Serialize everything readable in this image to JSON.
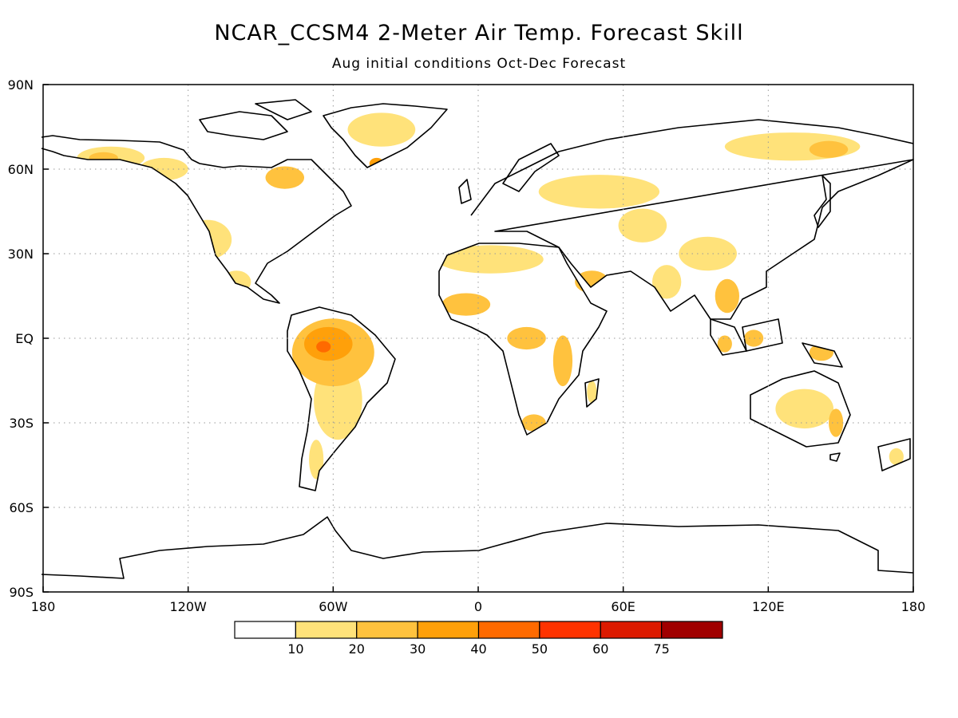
{
  "title": "NCAR_CCSM4 2-Meter Air Temp. Forecast Skill",
  "subtitle": "Aug initial conditions  Oct-Dec Forecast",
  "map": {
    "lon_range": [
      -180,
      180
    ],
    "lat_range": [
      -90,
      90
    ],
    "gridlines": "dotted",
    "lat_ticks": [
      {
        "value": 90,
        "label": "90N"
      },
      {
        "value": 60,
        "label": "60N"
      },
      {
        "value": 30,
        "label": "30N"
      },
      {
        "value": 0,
        "label": "EQ"
      },
      {
        "value": -30,
        "label": "30S"
      },
      {
        "value": -60,
        "label": "60S"
      },
      {
        "value": -90,
        "label": "90S"
      }
    ],
    "lon_ticks": [
      {
        "value": -180,
        "label": "180"
      },
      {
        "value": -120,
        "label": "120W"
      },
      {
        "value": -60,
        "label": "60W"
      },
      {
        "value": 0,
        "label": "0"
      },
      {
        "value": 60,
        "label": "60E"
      },
      {
        "value": 120,
        "label": "120E"
      },
      {
        "value": 180,
        "label": "180"
      }
    ]
  },
  "colorbar": {
    "bins": [
      {
        "color": "#ffffff"
      },
      {
        "color": "#ffe27a"
      },
      {
        "color": "#ffc23e"
      },
      {
        "color": "#ffa00a"
      },
      {
        "color": "#ff6a00"
      },
      {
        "color": "#ff3300"
      },
      {
        "color": "#dc1a00"
      },
      {
        "color": "#a00000"
      }
    ],
    "labels": [
      "10",
      "20",
      "30",
      "40",
      "50",
      "60",
      "75"
    ]
  },
  "skill_regions": [
    {
      "name": "amazon-core",
      "lon": -62,
      "lat": -2,
      "rlon": 10,
      "rlat": 6,
      "level": 3
    },
    {
      "name": "amazon-peak",
      "lon": -64,
      "lat": -3,
      "rlon": 3,
      "rlat": 2,
      "level": 4
    },
    {
      "name": "amazon-wide",
      "lon": -60,
      "lat": -5,
      "rlon": 17,
      "rlat": 12,
      "level": 2
    },
    {
      "name": "south-america-south",
      "lon": -58,
      "lat": -22,
      "rlon": 10,
      "rlat": 14,
      "level": 1
    },
    {
      "name": "patagonia",
      "lon": -67,
      "lat": -43,
      "rlon": 3,
      "rlat": 7,
      "level": 1
    },
    {
      "name": "alaska",
      "lon": -152,
      "lat": 64,
      "rlon": 14,
      "rlat": 4,
      "level": 1
    },
    {
      "name": "alaska-core",
      "lon": -155,
      "lat": 64,
      "rlon": 6,
      "rlat": 2,
      "level": 2
    },
    {
      "name": "canada-northwest",
      "lon": -130,
      "lat": 60,
      "rlon": 10,
      "rlat": 4,
      "level": 1
    },
    {
      "name": "hudson-bay",
      "lon": -80,
      "lat": 57,
      "rlon": 8,
      "rlat": 4,
      "level": 2
    },
    {
      "name": "greenland",
      "lon": -40,
      "lat": 74,
      "rlon": 14,
      "rlat": 6,
      "level": 1
    },
    {
      "name": "greenland-south",
      "lon": -42,
      "lat": 62,
      "rlon": 3,
      "rlat": 2,
      "level": 3
    },
    {
      "name": "usa-west",
      "lon": -112,
      "lat": 35,
      "rlon": 10,
      "rlat": 7,
      "level": 1
    },
    {
      "name": "mexico",
      "lon": -100,
      "lat": 20,
      "rlon": 6,
      "rlat": 4,
      "level": 1
    },
    {
      "name": "sahara",
      "lon": 5,
      "lat": 28,
      "rlon": 22,
      "rlat": 5,
      "level": 1
    },
    {
      "name": "west-africa",
      "lon": -5,
      "lat": 12,
      "rlon": 10,
      "rlat": 4,
      "level": 2
    },
    {
      "name": "central-africa",
      "lon": 20,
      "lat": 0,
      "rlon": 8,
      "rlat": 4,
      "level": 2
    },
    {
      "name": "east-africa",
      "lon": 35,
      "lat": -8,
      "rlon": 4,
      "rlat": 9,
      "level": 2
    },
    {
      "name": "south-africa",
      "lon": 23,
      "lat": -30,
      "rlon": 5,
      "rlat": 3,
      "level": 2
    },
    {
      "name": "madagascar",
      "lon": 47,
      "lat": -19,
      "rlon": 2,
      "rlat": 4,
      "level": 1
    },
    {
      "name": "arabia",
      "lon": 47,
      "lat": 20,
      "rlon": 7,
      "rlat": 4,
      "level": 2
    },
    {
      "name": "russia-west",
      "lon": 50,
      "lat": 52,
      "rlon": 25,
      "rlat": 6,
      "level": 1
    },
    {
      "name": "central-asia",
      "lon": 68,
      "lat": 40,
      "rlon": 10,
      "rlat": 6,
      "level": 1
    },
    {
      "name": "india",
      "lon": 78,
      "lat": 20,
      "rlon": 6,
      "rlat": 6,
      "level": 1
    },
    {
      "name": "china",
      "lon": 95,
      "lat": 30,
      "rlon": 12,
      "rlat": 6,
      "level": 1
    },
    {
      "name": "indochina",
      "lon": 103,
      "lat": 15,
      "rlon": 5,
      "rlat": 6,
      "level": 2
    },
    {
      "name": "siberia",
      "lon": 130,
      "lat": 68,
      "rlon": 28,
      "rlat": 5,
      "level": 1
    },
    {
      "name": "siberia-east",
      "lon": 145,
      "lat": 67,
      "rlon": 8,
      "rlat": 3,
      "level": 2
    },
    {
      "name": "borneo",
      "lon": 114,
      "lat": 0,
      "rlon": 4,
      "rlat": 3,
      "level": 2
    },
    {
      "name": "sumatra",
      "lon": 102,
      "lat": -2,
      "rlon": 3,
      "rlat": 3,
      "level": 2
    },
    {
      "name": "new-guinea",
      "lon": 142,
      "lat": -5,
      "rlon": 5,
      "rlat": 3,
      "level": 2
    },
    {
      "name": "australia",
      "lon": 135,
      "lat": -25,
      "rlon": 12,
      "rlat": 7,
      "level": 1
    },
    {
      "name": "australia-east",
      "lon": 148,
      "lat": -30,
      "rlon": 3,
      "rlat": 5,
      "level": 2
    },
    {
      "name": "new-zealand",
      "lon": 173,
      "lat": -42,
      "rlon": 3,
      "rlat": 3,
      "level": 1
    }
  ]
}
